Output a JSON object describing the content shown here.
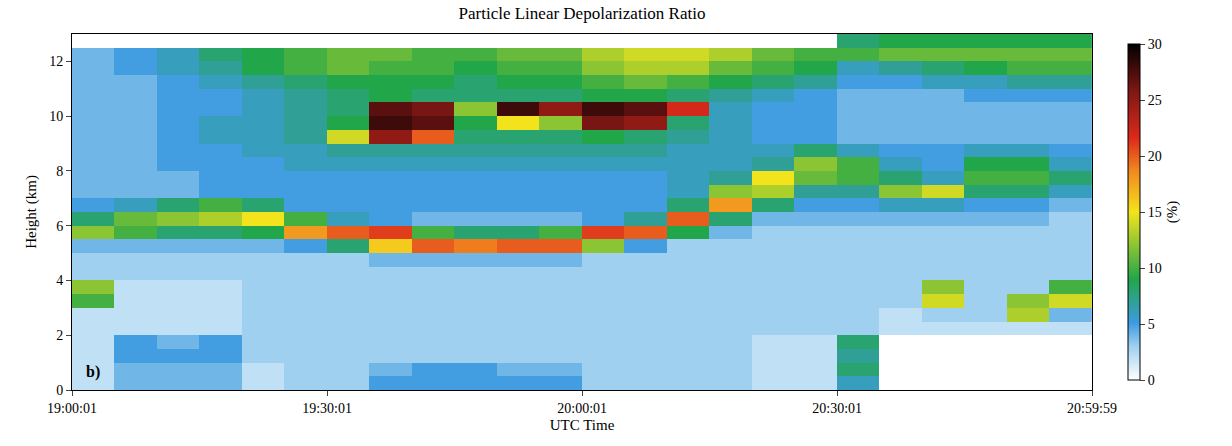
{
  "chart_data": {
    "type": "heatmap",
    "title": "Particle Linear Depolarization Ratio",
    "x_label": "UTC Time",
    "y_label": "Height (km)",
    "annotations": [
      {
        "text": "b)"
      }
    ],
    "x": [
      19.0417,
      19.125,
      19.2083,
      19.2917,
      19.375,
      19.4583,
      19.5417,
      19.625,
      19.7083,
      19.7917,
      19.875,
      19.9583,
      20.0417,
      20.125,
      20.2083,
      20.2917,
      20.375,
      20.4583,
      20.5417,
      20.625,
      20.7083,
      20.7917,
      20.875,
      20.9583
    ],
    "y": [
      0.25,
      0.75,
      1.25,
      1.75,
      2.25,
      2.75,
      3.25,
      3.75,
      4.25,
      4.75,
      5.25,
      5.75,
      6.25,
      6.75,
      7.25,
      7.75,
      8.25,
      8.75,
      9.25,
      9.75,
      10.25,
      10.75,
      11.25,
      11.75,
      12.25,
      12.75
    ],
    "z": [
      [
        2,
        4,
        4,
        4,
        2,
        3,
        3,
        5,
        5,
        5,
        5,
        5,
        3,
        3,
        3,
        3,
        2,
        2,
        6,
        null,
        null,
        null,
        null,
        null
      ],
      [
        2,
        4,
        4,
        4,
        2,
        3,
        3,
        4,
        5,
        5,
        4,
        4,
        3,
        3,
        3,
        3,
        2,
        2,
        8,
        null,
        null,
        null,
        null,
        null
      ],
      [
        2,
        5,
        5,
        5,
        3,
        3,
        3,
        3,
        3,
        3,
        3,
        3,
        3,
        3,
        3,
        3,
        2,
        2,
        7,
        null,
        null,
        null,
        null,
        null
      ],
      [
        2,
        5,
        4,
        5,
        3,
        3,
        3,
        3,
        3,
        3,
        3,
        3,
        3,
        3,
        3,
        3,
        2,
        2,
        8,
        null,
        null,
        null,
        null,
        null
      ],
      [
        2,
        2,
        2,
        2,
        3,
        3,
        3,
        3,
        3,
        3,
        3,
        3,
        3,
        3,
        3,
        3,
        3,
        3,
        3,
        2,
        2,
        2,
        2,
        2
      ],
      [
        2,
        2,
        2,
        2,
        3,
        3,
        3,
        3,
        3,
        3,
        3,
        3,
        3,
        3,
        3,
        3,
        3,
        3,
        3,
        2,
        3,
        3,
        13,
        4
      ],
      [
        10,
        2,
        2,
        2,
        3,
        3,
        3,
        3,
        3,
        3,
        3,
        3,
        3,
        3,
        3,
        3,
        3,
        3,
        3,
        3,
        14,
        3,
        12,
        14
      ],
      [
        12,
        2,
        2,
        2,
        3,
        3,
        3,
        3,
        3,
        3,
        3,
        3,
        3,
        3,
        3,
        3,
        3,
        3,
        3,
        3,
        12,
        3,
        3,
        10
      ],
      [
        3,
        3,
        3,
        3,
        3,
        3,
        3,
        3,
        3,
        3,
        3,
        3,
        3,
        3,
        3,
        3,
        3,
        3,
        3,
        3,
        3,
        3,
        3,
        3
      ],
      [
        3,
        3,
        3,
        3,
        3,
        3,
        3,
        4,
        4,
        4,
        4,
        4,
        3,
        3,
        3,
        3,
        3,
        3,
        3,
        3,
        3,
        3,
        3,
        3
      ],
      [
        4,
        4,
        4,
        4,
        4,
        5,
        8,
        16,
        20,
        19,
        20,
        20,
        12,
        5,
        3,
        3,
        3,
        3,
        3,
        3,
        3,
        3,
        3,
        3
      ],
      [
        12,
        10,
        8,
        8,
        9,
        18,
        20,
        21,
        10,
        8,
        8,
        10,
        21,
        20,
        9,
        4,
        3,
        3,
        3,
        3,
        3,
        3,
        3,
        3
      ],
      [
        8,
        11,
        12,
        13,
        15,
        10,
        6,
        5,
        4,
        4,
        4,
        4,
        5,
        7,
        20,
        8,
        4,
        4,
        4,
        4,
        4,
        4,
        4,
        3
      ],
      [
        5,
        6,
        8,
        10,
        8,
        5,
        5,
        5,
        5,
        5,
        5,
        5,
        5,
        5,
        8,
        18,
        8,
        5,
        5,
        6,
        6,
        5,
        5,
        4
      ],
      [
        4,
        4,
        4,
        5,
        5,
        5,
        5,
        5,
        5,
        5,
        5,
        5,
        5,
        5,
        6,
        12,
        13,
        7,
        7,
        12,
        14,
        8,
        8,
        6
      ],
      [
        4,
        4,
        4,
        5,
        5,
        5,
        5,
        5,
        5,
        5,
        5,
        5,
        5,
        5,
        6,
        7,
        15,
        11,
        10,
        8,
        6,
        10,
        10,
        8
      ],
      [
        4,
        4,
        5,
        5,
        5,
        6,
        6,
        6,
        6,
        6,
        6,
        6,
        6,
        6,
        6,
        6,
        7,
        12,
        10,
        6,
        5,
        9,
        9,
        6
      ],
      [
        4,
        4,
        5,
        5,
        6,
        6,
        7,
        7,
        7,
        7,
        7,
        7,
        7,
        7,
        6,
        6,
        6,
        8,
        6,
        5,
        5,
        6,
        6,
        5
      ],
      [
        4,
        4,
        5,
        6,
        6,
        7,
        14,
        25,
        20,
        8,
        8,
        8,
        9,
        8,
        7,
        6,
        5,
        5,
        4,
        4,
        4,
        4,
        4,
        4
      ],
      [
        4,
        4,
        5,
        6,
        6,
        7,
        9,
        28,
        27,
        9,
        15,
        12,
        26,
        25,
        8,
        6,
        5,
        5,
        4,
        4,
        4,
        4,
        4,
        4
      ],
      [
        4,
        4,
        5,
        5,
        6,
        7,
        8,
        27,
        26,
        12,
        28,
        25,
        28,
        27,
        22,
        6,
        5,
        5,
        4,
        4,
        4,
        4,
        4,
        4
      ],
      [
        4,
        4,
        5,
        5,
        6,
        7,
        8,
        9,
        8,
        8,
        8,
        8,
        9,
        9,
        8,
        7,
        6,
        5,
        4,
        4,
        4,
        5,
        5,
        5
      ],
      [
        4,
        4,
        5,
        6,
        7,
        8,
        9,
        9,
        9,
        8,
        9,
        9,
        10,
        11,
        10,
        9,
        8,
        7,
        5,
        5,
        6,
        6,
        7,
        7
      ],
      [
        4,
        5,
        6,
        7,
        9,
        10,
        11,
        10,
        10,
        9,
        10,
        10,
        12,
        13,
        13,
        11,
        10,
        9,
        6,
        7,
        8,
        9,
        10,
        10
      ],
      [
        4,
        5,
        6,
        8,
        9,
        10,
        11,
        11,
        10,
        10,
        11,
        11,
        13,
        14,
        14,
        13,
        11,
        10,
        10,
        11,
        11,
        11,
        11,
        11
      ],
      [
        null,
        null,
        null,
        null,
        null,
        null,
        null,
        null,
        null,
        null,
        null,
        null,
        null,
        null,
        null,
        null,
        null,
        null,
        8,
        9,
        9,
        9,
        9,
        9
      ]
    ],
    "xlim": [
      19.0003,
      20.9997
    ],
    "xticks": [
      {
        "value": 19.0003,
        "label": "19:00:01"
      },
      {
        "value": 19.5003,
        "label": "19:30:01"
      },
      {
        "value": 20.0003,
        "label": "20:00:01"
      },
      {
        "value": 20.5003,
        "label": "20:30:01"
      },
      {
        "value": 20.9997,
        "label": "20:59:59"
      }
    ],
    "ylim": [
      0,
      13
    ],
    "yticks": [
      0,
      2,
      4,
      6,
      8,
      10,
      12
    ],
    "zlim": [
      0,
      30
    ],
    "zticks": [
      0,
      5,
      10,
      15,
      20,
      25,
      30
    ],
    "colorbar_title": "(%)"
  }
}
